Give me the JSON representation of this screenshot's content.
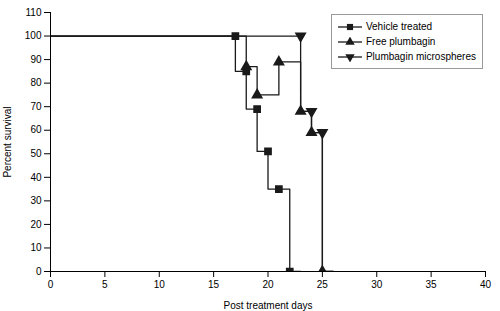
{
  "chart_data": {
    "type": "line",
    "xlabel": "Post treatment days",
    "ylabel": "Percent survival",
    "xlim": [
      0,
      40
    ],
    "ylim": [
      0,
      110
    ],
    "xticks": [
      0,
      5,
      10,
      15,
      20,
      25,
      30,
      35,
      40
    ],
    "yticks": [
      0,
      10,
      20,
      30,
      40,
      50,
      60,
      70,
      80,
      90,
      100,
      110
    ],
    "grid": false,
    "legend": "upper right",
    "series": [
      {
        "name": "Vehicle treated",
        "color": "#1a1a1a",
        "marker": "square",
        "x": [
          0,
          17,
          17,
          18,
          18,
          19,
          19,
          20,
          20,
          21,
          21,
          22,
          22,
          23
        ],
        "values": [
          100,
          100,
          85,
          85,
          69,
          69,
          51,
          51,
          35,
          35,
          35,
          35,
          0,
          0
        ],
        "marker_x": [
          17,
          18,
          19,
          20,
          21,
          22
        ],
        "marker_values": [
          100,
          85,
          69,
          51,
          35,
          0
        ]
      },
      {
        "name": "Free plumbagin",
        "color": "#1a1a1a",
        "marker": "triangle-up",
        "x": [
          0,
          18,
          18,
          19,
          19,
          21,
          21,
          23,
          23,
          24,
          24,
          25,
          25,
          26
        ],
        "values": [
          100,
          100,
          87,
          87,
          75,
          75,
          89,
          89,
          68,
          68,
          59,
          59,
          0,
          0
        ],
        "marker_x": [
          18,
          19,
          21,
          23,
          24,
          25
        ],
        "marker_values": [
          87,
          75,
          89,
          68,
          59,
          0
        ]
      },
      {
        "name": "Plumbagin microspheres",
        "color": "#1a1a1a",
        "marker": "triangle-down",
        "x": [
          0,
          23,
          23,
          24,
          24,
          25,
          25,
          26
        ],
        "values": [
          100,
          100,
          68,
          68,
          59,
          59,
          0,
          0
        ],
        "marker_x": [
          23,
          24,
          25
        ],
        "marker_values": [
          100,
          68,
          59
        ]
      }
    ]
  }
}
